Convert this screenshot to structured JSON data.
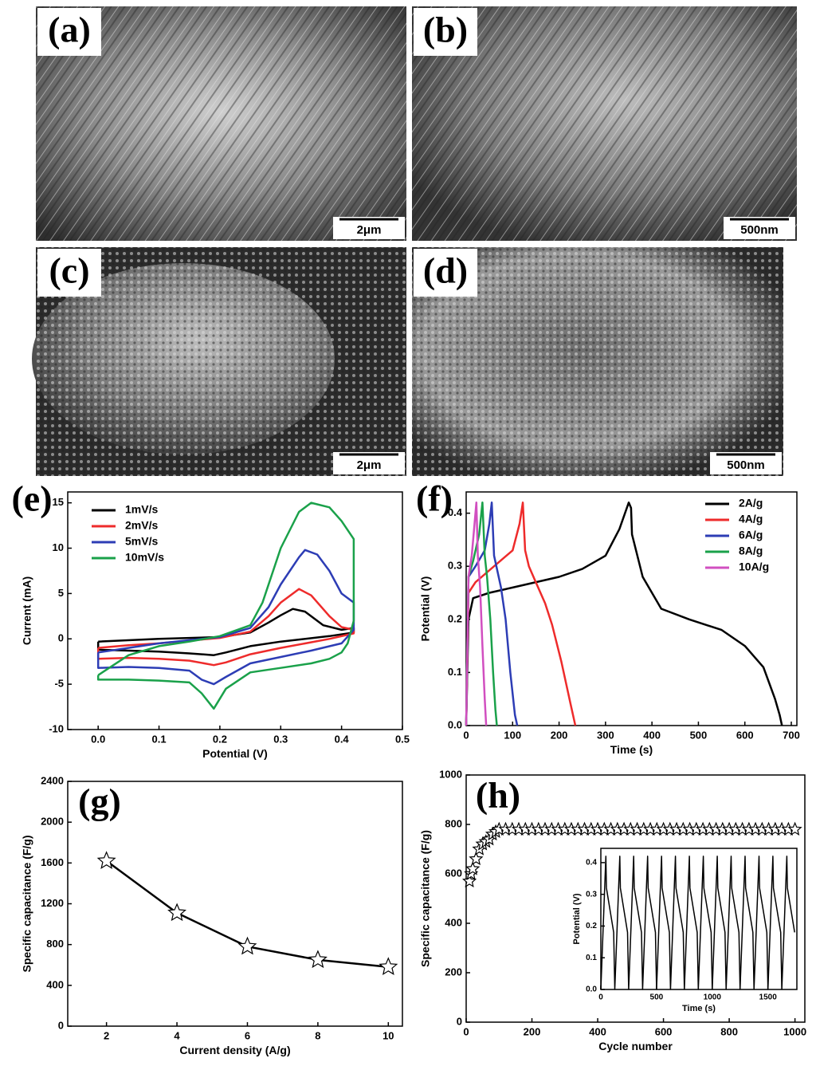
{
  "images": [
    {
      "label": "(a)",
      "scale_bar": "2μm"
    },
    {
      "label": "(b)",
      "scale_bar": "500nm"
    },
    {
      "label": "(c)",
      "scale_bar": "2μm"
    },
    {
      "label": "(d)",
      "scale_bar": "500nm"
    }
  ],
  "chart_data": [
    {
      "type": "line",
      "panel_label": "(e)",
      "xlabel": "Potential (V)",
      "ylabel": "Current (mA)",
      "xlim": [
        -0.05,
        0.5
      ],
      "ylim": [
        -10,
        16.2
      ],
      "xticks": [
        {
          "value": 0,
          "label": "0.0"
        },
        0.1,
        0.2,
        0.3,
        0.4,
        0.5
      ],
      "yticks": [
        -10,
        -5,
        0,
        5,
        10,
        15
      ],
      "legend": "upper left",
      "series": [
        {
          "name": "1mV/s",
          "color": "#000000",
          "x": [
            0,
            0.1,
            0.2,
            0.25,
            0.28,
            0.3,
            0.32,
            0.34,
            0.37,
            0.4,
            0.42,
            0.42,
            0.38,
            0.3,
            0.25,
            0.21,
            0.19,
            0.15,
            0.1,
            0.05,
            0,
            0
          ],
          "values": [
            -0.3,
            0,
            0.2,
            0.7,
            1.8,
            2.6,
            3.3,
            3,
            1.5,
            1,
            1.2,
            0.7,
            0.3,
            -0.3,
            -0.8,
            -1.5,
            -1.8,
            -1.6,
            -1.4,
            -1.3,
            -1.2,
            -0.3
          ]
        },
        {
          "name": "2mV/s",
          "color": "#ee2b2b",
          "x": [
            0,
            0.05,
            0.1,
            0.2,
            0.25,
            0.28,
            0.3,
            0.33,
            0.35,
            0.38,
            0.4,
            0.42,
            0.42,
            0.38,
            0.3,
            0.25,
            0.21,
            0.19,
            0.15,
            0.1,
            0.05,
            0,
            0
          ],
          "values": [
            -1,
            -0.7,
            -0.5,
            0.1,
            0.8,
            2.5,
            4,
            5.5,
            4.8,
            2.5,
            1.3,
            1,
            0.6,
            0,
            -1,
            -1.7,
            -2.6,
            -2.9,
            -2.4,
            -2.2,
            -2.1,
            -2.2,
            -1
          ]
        },
        {
          "name": "5mV/s",
          "color": "#2d3db5",
          "x": [
            0,
            0.1,
            0.2,
            0.25,
            0.28,
            0.3,
            0.33,
            0.34,
            0.36,
            0.38,
            0.4,
            0.42,
            0.42,
            0.4,
            0.35,
            0.3,
            0.25,
            0.21,
            0.19,
            0.17,
            0.15,
            0.1,
            0.05,
            0,
            0
          ],
          "values": [
            -1.5,
            -0.5,
            0.2,
            1.2,
            3.5,
            6,
            9,
            9.8,
            9.3,
            7.5,
            5,
            4,
            1,
            -0.5,
            -1.3,
            -2,
            -2.7,
            -4.2,
            -5,
            -4.5,
            -3.5,
            -3.2,
            -3.1,
            -3.2,
            -1.5
          ]
        },
        {
          "name": "10mV/s",
          "color": "#1aa14a",
          "x": [
            0,
            0.05,
            0.1,
            0.15,
            0.2,
            0.25,
            0.27,
            0.3,
            0.33,
            0.35,
            0.38,
            0.4,
            0.42,
            0.42,
            0.41,
            0.4,
            0.38,
            0.35,
            0.3,
            0.25,
            0.21,
            0.19,
            0.17,
            0.15,
            0.1,
            0.05,
            0,
            0
          ],
          "values": [
            -4,
            -1.8,
            -0.8,
            -0.3,
            0.3,
            1.5,
            4,
            10,
            14,
            15,
            14.5,
            13,
            11,
            2,
            -0.5,
            -1.5,
            -2.2,
            -2.7,
            -3.2,
            -3.7,
            -5.5,
            -7.7,
            -6,
            -4.8,
            -4.6,
            -4.5,
            -4.5,
            -4
          ]
        }
      ]
    },
    {
      "type": "line",
      "panel_label": "(f)",
      "xlabel": "Time (s)",
      "ylabel": "Potential (V)",
      "xlim": [
        0,
        712
      ],
      "ylim": [
        0,
        0.44
      ],
      "xticks": [
        0,
        100,
        200,
        300,
        400,
        500,
        600,
        700
      ],
      "yticks": [
        {
          "value": 0,
          "label": "0.0"
        },
        0.1,
        0.2,
        0.3,
        0.4
      ],
      "legend": "upper right",
      "series": [
        {
          "name": "2A/g",
          "color": "#000000",
          "x": [
            0,
            5,
            15,
            50,
            100,
            200,
            250,
            300,
            330,
            350,
            355,
            357,
            360,
            380,
            420,
            480,
            550,
            600,
            640,
            665,
            675,
            680
          ],
          "values": [
            0,
            0.2,
            0.24,
            0.25,
            0.26,
            0.28,
            0.295,
            0.32,
            0.37,
            0.42,
            0.41,
            0.36,
            0.35,
            0.28,
            0.22,
            0.2,
            0.18,
            0.15,
            0.11,
            0.05,
            0.02,
            0
          ]
        },
        {
          "name": "4A/g",
          "color": "#ee2b2b",
          "x": [
            0,
            5,
            20,
            60,
            100,
            115,
            122,
            127,
            135,
            150,
            170,
            185,
            205,
            225,
            235
          ],
          "values": [
            0,
            0.25,
            0.27,
            0.3,
            0.33,
            0.38,
            0.42,
            0.33,
            0.3,
            0.27,
            0.23,
            0.19,
            0.12,
            0.04,
            0
          ]
        },
        {
          "name": "6A/g",
          "color": "#2d3db5",
          "x": [
            0,
            5,
            20,
            40,
            50,
            55,
            60,
            65,
            75,
            85,
            95,
            105,
            110
          ],
          "values": [
            0,
            0.28,
            0.3,
            0.33,
            0.38,
            0.42,
            0.32,
            0.3,
            0.26,
            0.2,
            0.1,
            0.02,
            0
          ]
        },
        {
          "name": "8A/g",
          "color": "#1aa14a",
          "x": [
            0,
            5,
            15,
            28,
            35,
            40,
            45,
            52,
            58,
            63,
            66
          ],
          "values": [
            0,
            0.28,
            0.31,
            0.36,
            0.42,
            0.32,
            0.28,
            0.2,
            0.1,
            0.03,
            0
          ]
        },
        {
          "name": "10A/g",
          "color": "#d14fc0",
          "x": [
            0,
            5,
            12,
            18,
            22,
            25,
            30,
            35,
            40,
            43
          ],
          "values": [
            0,
            0.28,
            0.32,
            0.38,
            0.42,
            0.32,
            0.26,
            0.15,
            0.05,
            0
          ]
        }
      ]
    },
    {
      "type": "line",
      "panel_label": "(g)",
      "xlabel": "Current density (A/g)",
      "ylabel": "Specific capacitance  (F/g)",
      "xlim": [
        0.9,
        10.4
      ],
      "ylim": [
        0,
        2400
      ],
      "xticks": [
        2,
        4,
        6,
        8,
        10
      ],
      "yticks": [
        0,
        400,
        800,
        1200,
        1600,
        2000,
        2400
      ],
      "marker": "star",
      "series": [
        {
          "color": "#000000",
          "x": [
            2,
            4,
            6,
            8,
            10
          ],
          "values": [
            1620,
            1110,
            780,
            650,
            580
          ]
        }
      ]
    },
    {
      "type": "scatter",
      "panel_label": "(h)",
      "xlabel": "Cycle number",
      "ylabel": "Specific capacitance (F/g)",
      "xlim": [
        0,
        1030
      ],
      "ylim": [
        0,
        1000
      ],
      "xticks": [
        0,
        200,
        400,
        600,
        800,
        1000
      ],
      "yticks": [
        0,
        200,
        400,
        600,
        800,
        1000
      ],
      "marker": "star",
      "series": [
        {
          "color": "#000000",
          "x": [
            10,
            15,
            20,
            30,
            40,
            50,
            60,
            70,
            80,
            90,
            100,
            120,
            140,
            160,
            180,
            200,
            220,
            240,
            260,
            280,
            300,
            320,
            340,
            360,
            380,
            400,
            420,
            440,
            460,
            480,
            500,
            520,
            540,
            560,
            580,
            600,
            620,
            640,
            660,
            680,
            700,
            720,
            740,
            760,
            780,
            800,
            820,
            840,
            860,
            880,
            900,
            920,
            940,
            960,
            980,
            1000
          ],
          "values": [
            570,
            600,
            620,
            660,
            700,
            720,
            730,
            740,
            760,
            770,
            780,
            780,
            780,
            780,
            780,
            780,
            780,
            780,
            780,
            780,
            780,
            780,
            780,
            780,
            780,
            780,
            780,
            780,
            780,
            780,
            780,
            780,
            780,
            780,
            780,
            780,
            780,
            780,
            780,
            780,
            780,
            780,
            780,
            780,
            780,
            780,
            780,
            780,
            780,
            780,
            780,
            780,
            780,
            780,
            780,
            780
          ]
        }
      ]
    },
    {
      "type": "line",
      "xlabel": "Time (s)",
      "ylabel": "Potential (V)",
      "xlim": [
        0,
        1760
      ],
      "ylim": [
        0,
        0.445
      ],
      "xticks": [
        0,
        500,
        1000,
        1500
      ],
      "yticks": [
        {
          "value": 0,
          "label": "0.0"
        },
        0.1,
        0.2,
        0.3,
        0.4
      ],
      "series": [
        {
          "color": "#000000",
          "x": [
            0,
            45,
            50,
            115,
            125,
            170,
            175,
            240,
            250,
            295,
            300,
            365,
            375,
            420,
            425,
            490,
            500,
            545,
            550,
            615,
            625,
            670,
            675,
            740,
            750,
            795,
            800,
            865,
            875,
            920,
            925,
            990,
            1000,
            1045,
            1050,
            1115,
            1125,
            1170,
            1175,
            1240,
            1250,
            1295,
            1300,
            1365,
            1375,
            1420,
            1425,
            1490,
            1500,
            1545,
            1550,
            1615,
            1625,
            1670,
            1675,
            1740
          ],
          "values": [
            0,
            0.42,
            0.32,
            0.18,
            0,
            0.42,
            0.32,
            0.18,
            0,
            0.42,
            0.32,
            0.18,
            0,
            0.42,
            0.32,
            0.18,
            0,
            0.42,
            0.32,
            0.18,
            0,
            0.42,
            0.32,
            0.18,
            0,
            0.42,
            0.32,
            0.18,
            0,
            0.42,
            0.32,
            0.18,
            0,
            0.42,
            0.32,
            0.18,
            0,
            0.42,
            0.32,
            0.18,
            0,
            0.42,
            0.32,
            0.18,
            0,
            0.42,
            0.32,
            0.18,
            0,
            0.42,
            0.32,
            0.18,
            0,
            0.42,
            0.32,
            0.18
          ]
        }
      ]
    }
  ]
}
